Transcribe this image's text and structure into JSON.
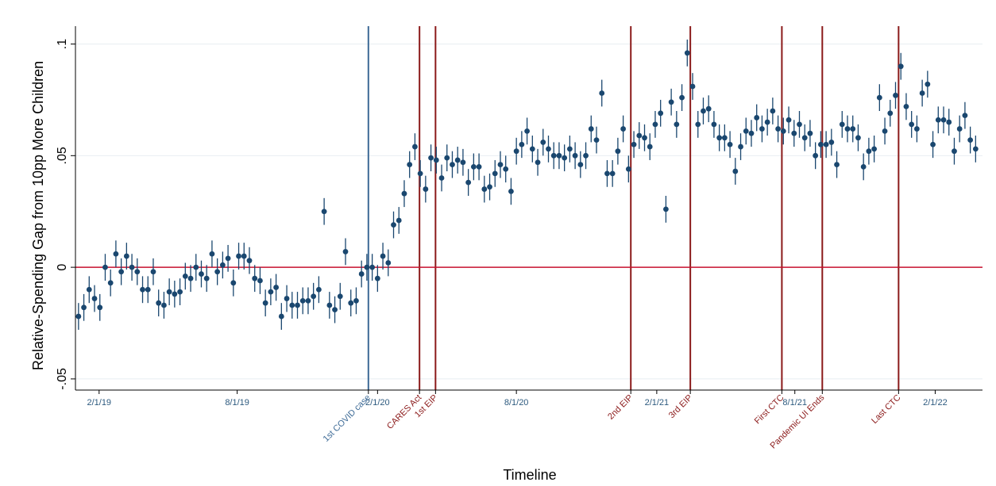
{
  "chart_data": {
    "type": "scatter",
    "title": "",
    "xlabel": "Timeline",
    "ylabel": "Relative-Spending Gap from 10pp More Children",
    "ylim": [
      -0.055,
      0.108
    ],
    "yticks": [
      {
        "value": -0.05,
        "label": "-.05"
      },
      {
        "value": 0,
        "label": "0"
      },
      {
        "value": 0.05,
        "label": ".05"
      },
      {
        "value": 0.1,
        "label": ".1"
      }
    ],
    "xticks": [
      {
        "date": "2019-02-01",
        "label": "2/1/19"
      },
      {
        "date": "2019-08-01",
        "label": "8/1/19"
      },
      {
        "date": "2020-02-01",
        "label": "2/1/20"
      },
      {
        "date": "2020-08-01",
        "label": "8/1/20"
      },
      {
        "date": "2021-02-01",
        "label": "2/1/21"
      },
      {
        "date": "2021-08-01",
        "label": "8/1/21"
      },
      {
        "date": "2022-02-01",
        "label": "2/1/22"
      }
    ],
    "reference_line": {
      "y": 0,
      "color": "#c8102e"
    },
    "grid": "horizontal",
    "colors": {
      "points": "#1a476f",
      "covid_line": "#3d6a96",
      "policy_line": "#8b1a1a",
      "zero_line": "#c8102e"
    },
    "events": [
      {
        "label": "1st COVID case",
        "date": "2020-01-20",
        "color": "#3d6a96"
      },
      {
        "label": "CARES Act",
        "date": "2020-03-27",
        "color": "#8b1a1a"
      },
      {
        "label": "1st EIP",
        "date": "2020-04-17",
        "color": "#8b1a1a"
      },
      {
        "label": "2nd EIP",
        "date": "2020-12-29",
        "color": "#8b1a1a"
      },
      {
        "label": "3rd EIP",
        "date": "2021-03-17",
        "color": "#8b1a1a"
      },
      {
        "label": "First CTC",
        "date": "2021-07-15",
        "color": "#8b1a1a"
      },
      {
        "label": "Pandemic UI Ends",
        "date": "2021-09-06",
        "color": "#8b1a1a"
      },
      {
        "label": "Last CTC",
        "date": "2021-12-15",
        "color": "#8b1a1a"
      }
    ],
    "series": [
      {
        "start_date": "2019-01-05",
        "interval_days": 7,
        "values": [
          -0.022,
          -0.018,
          -0.01,
          -0.014,
          -0.018,
          0.0,
          -0.007,
          0.006,
          -0.002,
          0.005,
          0.0,
          -0.002,
          -0.01,
          -0.01,
          -0.002,
          -0.016,
          -0.017,
          -0.011,
          -0.012,
          -0.011,
          -0.004,
          -0.005,
          0.0,
          -0.003,
          -0.005,
          0.006,
          -0.002,
          0.001,
          0.004,
          -0.007,
          0.005,
          0.005,
          0.003,
          -0.005,
          -0.006,
          -0.016,
          -0.011,
          -0.009,
          -0.022,
          -0.014,
          -0.017,
          -0.017,
          -0.015,
          -0.015,
          -0.013,
          -0.01,
          0.025,
          -0.017,
          -0.019,
          -0.013,
          0.007,
          -0.016,
          -0.015,
          -0.003,
          0.0,
          0.0,
          -0.005,
          0.005,
          0.002,
          0.019,
          0.021,
          0.033,
          0.046,
          0.054,
          0.042,
          0.035,
          0.049,
          0.048,
          0.04,
          0.049,
          0.046,
          0.048,
          0.047,
          0.038,
          0.045,
          0.045,
          0.035,
          0.036,
          0.042,
          0.046,
          0.044,
          0.034,
          0.052,
          0.055,
          0.061,
          0.053,
          0.047,
          0.056,
          0.053,
          0.05,
          0.05,
          0.049,
          0.053,
          0.05,
          0.046,
          0.05,
          0.062,
          0.057,
          0.078,
          0.042,
          0.042,
          0.052,
          0.062,
          0.044,
          0.055,
          0.059,
          0.058,
          0.054,
          0.064,
          0.069,
          0.026,
          0.074,
          0.064,
          0.076,
          0.096,
          0.081,
          0.064,
          0.07,
          0.071,
          0.064,
          0.058,
          0.058,
          0.055,
          0.043,
          0.054,
          0.061,
          0.06,
          0.067,
          0.062,
          0.065,
          0.07,
          0.062,
          0.061,
          0.066,
          0.06,
          0.064,
          0.058,
          0.06,
          0.05,
          0.055,
          0.055,
          0.056,
          0.046,
          0.064,
          0.062,
          0.062,
          0.058,
          0.045,
          0.052,
          0.053,
          0.076,
          0.061,
          0.069,
          0.077,
          0.09,
          0.072,
          0.064,
          0.062,
          0.078,
          0.082,
          0.055,
          0.066,
          0.066,
          0.065,
          0.052,
          0.062,
          0.068,
          0.057,
          0.053
        ],
        "ci_halfwidth": 0.006
      }
    ]
  }
}
